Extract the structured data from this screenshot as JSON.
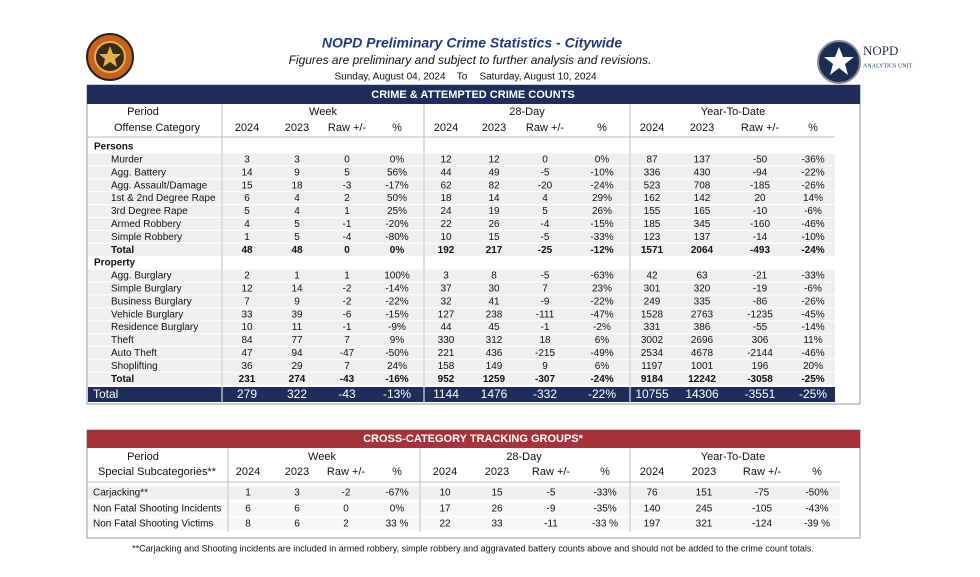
{
  "header": {
    "title": "NOPD Preliminary Crime Statistics - Citywide",
    "subtitle": "Figures are preliminary and subject to further analysis and revisions.",
    "start_date": "Sunday, August 04, 2024",
    "to": "To",
    "end_date": "Saturday, August 10, 2024",
    "logo_name": "NOPD",
    "logo_unit": "ANALYTICS UNIT"
  },
  "table1": {
    "banner": "CRIME & ATTEMPTED CRIME COUNTS",
    "period_label": "Period",
    "category_label": "Offense Category",
    "groups": [
      "Week",
      "28-Day",
      "Year-To-Date"
    ],
    "columns": [
      "2024",
      "2023",
      "Raw +/-",
      "%"
    ],
    "sections": [
      {
        "name": "Persons",
        "rows": [
          {
            "label": "Murder",
            "cells": [
              "3",
              "3",
              "0",
              "0%",
              "12",
              "12",
              "0",
              "0%",
              "87",
              "137",
              "-50",
              "-36%"
            ]
          },
          {
            "label": "Agg. Battery",
            "cells": [
              "14",
              "9",
              "5",
              "56%",
              "44",
              "49",
              "-5",
              "-10%",
              "336",
              "430",
              "-94",
              "-22%"
            ]
          },
          {
            "label": "Agg. Assault/Damage",
            "cells": [
              "15",
              "18",
              "-3",
              "-17%",
              "62",
              "82",
              "-20",
              "-24%",
              "523",
              "708",
              "-185",
              "-26%"
            ]
          },
          {
            "label": "1st & 2nd Degree Rape",
            "cells": [
              "6",
              "4",
              "2",
              "50%",
              "18",
              "14",
              "4",
              "29%",
              "162",
              "142",
              "20",
              "14%"
            ]
          },
          {
            "label": "3rd Degree Rape",
            "cells": [
              "5",
              "4",
              "1",
              "25%",
              "24",
              "19",
              "5",
              "26%",
              "155",
              "165",
              "-10",
              "-6%"
            ]
          },
          {
            "label": "Armed Robbery",
            "cells": [
              "4",
              "5",
              "-1",
              "-20%",
              "22",
              "26",
              "-4",
              "-15%",
              "185",
              "345",
              "-160",
              "-46%"
            ]
          },
          {
            "label": "Simple Robbery",
            "cells": [
              "1",
              "5",
              "-4",
              "-80%",
              "10",
              "15",
              "-5",
              "-33%",
              "123",
              "137",
              "-14",
              "-10%"
            ]
          }
        ],
        "total": {
          "label": "Total",
          "cells": [
            "48",
            "48",
            "0",
            "0%",
            "192",
            "217",
            "-25",
            "-12%",
            "1571",
            "2064",
            "-493",
            "-24%"
          ]
        }
      },
      {
        "name": "Property",
        "rows": [
          {
            "label": "Agg. Burglary",
            "cells": [
              "2",
              "1",
              "1",
              "100%",
              "3",
              "8",
              "-5",
              "-63%",
              "42",
              "63",
              "-21",
              "-33%"
            ]
          },
          {
            "label": "Simple Burglary",
            "cells": [
              "12",
              "14",
              "-2",
              "-14%",
              "37",
              "30",
              "7",
              "23%",
              "301",
              "320",
              "-19",
              "-6%"
            ]
          },
          {
            "label": "Business Burglary",
            "cells": [
              "7",
              "9",
              "-2",
              "-22%",
              "32",
              "41",
              "-9",
              "-22%",
              "249",
              "335",
              "-86",
              "-26%"
            ]
          },
          {
            "label": "Vehicle Burglary",
            "cells": [
              "33",
              "39",
              "-6",
              "-15%",
              "127",
              "238",
              "-111",
              "-47%",
              "1528",
              "2763",
              "-1235",
              "-45%"
            ]
          },
          {
            "label": "Residence Burglary",
            "cells": [
              "10",
              "11",
              "-1",
              "-9%",
              "44",
              "45",
              "-1",
              "-2%",
              "331",
              "386",
              "-55",
              "-14%"
            ]
          },
          {
            "label": "Theft",
            "cells": [
              "84",
              "77",
              "7",
              "9%",
              "330",
              "312",
              "18",
              "6%",
              "3002",
              "2696",
              "306",
              "11%"
            ]
          },
          {
            "label": "Auto Theft",
            "cells": [
              "47",
              "94",
              "-47",
              "-50%",
              "221",
              "436",
              "-215",
              "-49%",
              "2534",
              "4678",
              "-2144",
              "-46%"
            ]
          },
          {
            "label": "Shoplifting",
            "cells": [
              "36",
              "29",
              "7",
              "24%",
              "158",
              "149",
              "9",
              "6%",
              "1197",
              "1001",
              "196",
              "20%"
            ]
          }
        ],
        "total": {
          "label": "Total",
          "cells": [
            "231",
            "274",
            "-43",
            "-16%",
            "952",
            "1259",
            "-307",
            "-24%",
            "9184",
            "12242",
            "-3058",
            "-25%"
          ]
        }
      }
    ],
    "grand_total": {
      "label": "Total",
      "cells": [
        "279",
        "322",
        "-43",
        "-13%",
        "1144",
        "1476",
        "-332",
        "-22%",
        "10755",
        "14306",
        "-3551",
        "-25%"
      ]
    }
  },
  "table2": {
    "banner": "CROSS-CATEGORY TRACKING GROUPS*",
    "period_label": "Period",
    "category_label": "Special Subcategories**",
    "groups": [
      "Week",
      "28-Day",
      "Year-To-Date"
    ],
    "columns": [
      "2024",
      "2023",
      "Raw +/-",
      "%"
    ],
    "rows": [
      {
        "label": "Carjacking**",
        "cells": [
          "1",
          "3",
          "-2",
          "-67%",
          "10",
          "15",
          "-5",
          "-33%",
          "76",
          "151",
          "-75",
          "-50%"
        ]
      },
      {
        "label": "Non Fatal Shooting Incidents",
        "cells": [
          "6",
          "6",
          "0",
          "0%",
          "17",
          "26",
          "-9",
          "-35%",
          "140",
          "245",
          "-105",
          "-43%"
        ]
      },
      {
        "label": "Non Fatal Shooting Victims",
        "cells": [
          "8",
          "6",
          "2",
          "33 %",
          "22",
          "33",
          "-11",
          "-33 %",
          "197",
          "321",
          "-124",
          "-39 %"
        ]
      }
    ]
  },
  "footnote": "**Carjacking and Shooting incidents are included in armed robbery, simple robbery and aggravated battery counts above and should not be added to the crime count totals."
}
